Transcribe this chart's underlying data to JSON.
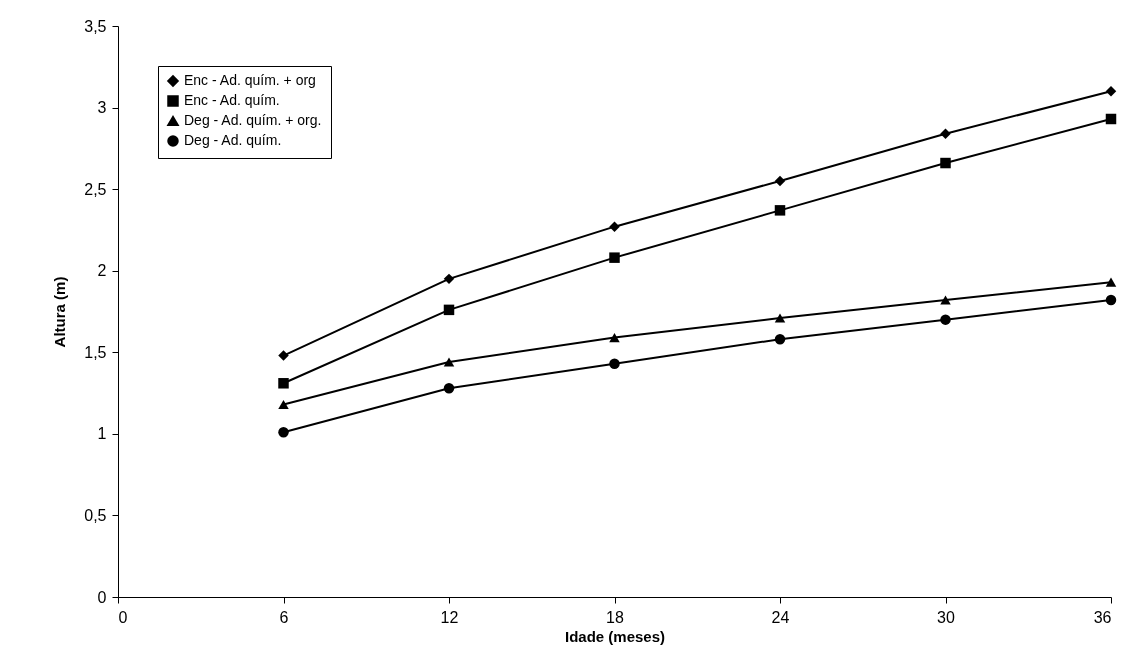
{
  "chart_data": {
    "type": "line",
    "xlabel": "Idade (meses)",
    "ylabel": "Altura (m)",
    "x": [
      6,
      12,
      18,
      24,
      30,
      36
    ],
    "series": [
      {
        "name": "Enc - Ad. quím. + org",
        "color": "#000000",
        "marker": "diamond",
        "values": [
          1.48,
          1.95,
          2.27,
          2.55,
          2.84,
          3.1
        ]
      },
      {
        "name": "Enc - Ad. quím.",
        "color": "#000000",
        "marker": "square",
        "values": [
          1.31,
          1.76,
          2.08,
          2.37,
          2.66,
          2.93
        ]
      },
      {
        "name": "Deg - Ad. quím. + org.",
        "color": "#000000",
        "marker": "triangle",
        "values": [
          1.18,
          1.44,
          1.59,
          1.71,
          1.82,
          1.93
        ]
      },
      {
        "name": "Deg - Ad. quím.",
        "color": "#000000",
        "marker": "circle",
        "values": [
          1.01,
          1.28,
          1.43,
          1.58,
          1.7,
          1.82
        ]
      }
    ],
    "xlim": [
      0,
      36
    ],
    "xticks": [
      0,
      6,
      12,
      18,
      24,
      30,
      36
    ],
    "ylim": [
      0,
      3.5
    ],
    "yticks": [
      0,
      {
        "value": 0.5,
        "label": "0,5"
      },
      1,
      {
        "value": 1.5,
        "label": "1,5"
      },
      2,
      {
        "value": 2.5,
        "label": "2,5"
      },
      3,
      {
        "value": 3.5,
        "label": "3,5"
      }
    ],
    "grid": false,
    "legend": "top left",
    "line_style": "solid"
  }
}
